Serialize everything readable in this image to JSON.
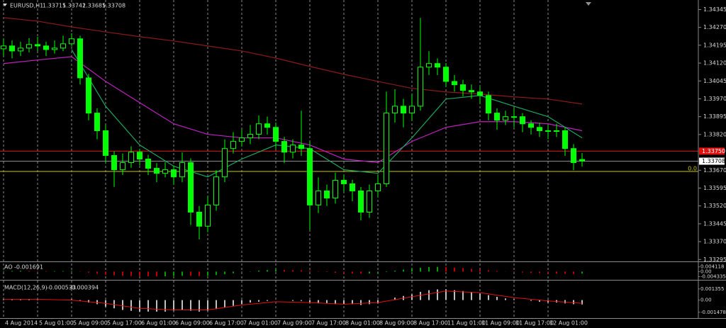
{
  "chart_data": {
    "type": "candlestick",
    "symbol": "EURUSD,H1",
    "ylim": [
      1.3329,
      1.34385
    ],
    "yticks": [
      1.34345,
      {
        "value": 1.3427,
        "label": "1.34270"
      },
      1.34195,
      {
        "value": 1.3412,
        "label": "1.34120"
      },
      1.34045,
      {
        "value": 1.3397,
        "label": "1.33970"
      },
      1.33895,
      {
        "value": 1.3382,
        "label": "1.33820"
      },
      {
        "value": 1.3367,
        "label": "1.33670"
      },
      1.33595,
      {
        "value": 1.3352,
        "label": "1.33520"
      },
      1.33445,
      {
        "value": 1.3337,
        "label": "1.33370"
      },
      1.33295
    ],
    "xticks": [
      {
        "value": 0,
        "label": "4 Aug 2014"
      },
      {
        "value": 4,
        "label": "5 Aug 01:00"
      },
      {
        "value": 8,
        "label": "5 Aug 09:00"
      },
      {
        "value": 12,
        "label": "5 Aug 17:00"
      },
      {
        "value": 16,
        "label": "6 Aug 01:00"
      },
      {
        "value": 20,
        "label": "6 Aug 09:00"
      },
      {
        "value": 24,
        "label": "6 Aug 17:00"
      },
      {
        "value": 28,
        "label": "7 Aug 01:00"
      },
      {
        "value": 32,
        "label": "7 Aug 09:00"
      },
      {
        "value": 36,
        "label": "7 Aug 17:00"
      },
      {
        "value": 40,
        "label": "8 Aug 01:00"
      },
      {
        "value": 44,
        "label": "8 Aug 09:00"
      },
      {
        "value": 48,
        "label": "8 Aug 17:00"
      },
      {
        "value": 52,
        "label": "11 Aug 01:00"
      },
      {
        "value": 56,
        "label": "11 Aug 09:00"
      },
      {
        "value": 60,
        "label": "11 Aug 17:00"
      },
      {
        "value": 64,
        "label": "12 Aug 01:00"
      }
    ],
    "bull_color": "#00ff00",
    "bear_color": "#00ff00",
    "ohlc": [
      [
        1.3418,
        1.34222,
        1.3415,
        1.34192
      ],
      [
        1.34192,
        1.34215,
        1.3414,
        1.34171
      ],
      [
        1.34171,
        1.3421,
        1.3415,
        1.34183
      ],
      [
        1.34183,
        1.34225,
        1.34165,
        1.34198
      ],
      [
        1.34198,
        1.3423,
        1.3417,
        1.34192
      ],
      [
        1.34192,
        1.3421,
        1.3415,
        1.34177
      ],
      [
        1.34177,
        1.34215,
        1.3416,
        1.34183
      ],
      [
        1.34183,
        1.34235,
        1.3417,
        1.34201
      ],
      [
        1.34201,
        1.34245,
        1.3419,
        1.34222
      ],
      [
        1.34222,
        1.34235,
        1.3403,
        1.34058
      ],
      [
        1.34058,
        1.34075,
        1.3388,
        1.3391
      ],
      [
        1.3391,
        1.3393,
        1.338,
        1.33836
      ],
      [
        1.33836,
        1.3386,
        1.337,
        1.33732
      ],
      [
        1.33732,
        1.3375,
        1.336,
        1.33672
      ],
      [
        1.33672,
        1.3374,
        1.3365,
        1.33702
      ],
      [
        1.33702,
        1.3377,
        1.3368,
        1.33746
      ],
      [
        1.33746,
        1.3376,
        1.3369,
        1.33717
      ],
      [
        1.33717,
        1.33735,
        1.3365,
        1.33678
      ],
      [
        1.33678,
        1.337,
        1.3362,
        1.33657
      ],
      [
        1.33657,
        1.33705,
        1.3364,
        1.33672
      ],
      [
        1.33672,
        1.3369,
        1.3361,
        1.33642
      ],
      [
        1.33642,
        1.33745,
        1.3362,
        1.33702
      ],
      [
        1.33702,
        1.3372,
        1.3344,
        1.33494
      ],
      [
        1.33494,
        1.3352,
        1.3338,
        1.33435
      ],
      [
        1.33435,
        1.3356,
        1.3341,
        1.33524
      ],
      [
        1.33524,
        1.3367,
        1.335,
        1.33642
      ],
      [
        1.33642,
        1.338,
        1.3362,
        1.33761
      ],
      [
        1.33761,
        1.3383,
        1.3374,
        1.33791
      ],
      [
        1.33791,
        1.3384,
        1.3377,
        1.33806
      ],
      [
        1.33806,
        1.3386,
        1.3378,
        1.33821
      ],
      [
        1.33821,
        1.339,
        1.338,
        1.33865
      ],
      [
        1.33865,
        1.33895,
        1.3382,
        1.3385
      ],
      [
        1.3385,
        1.3387,
        1.3376,
        1.33791
      ],
      [
        1.33791,
        1.3381,
        1.337,
        1.33746
      ],
      [
        1.33746,
        1.338,
        1.3372,
        1.33776
      ],
      [
        1.33776,
        1.3392,
        1.3373,
        1.33761
      ],
      [
        1.33761,
        1.3379,
        1.3342,
        1.33524
      ],
      [
        1.33524,
        1.3364,
        1.3349,
        1.33583
      ],
      [
        1.33583,
        1.3361,
        1.3352,
        1.33553
      ],
      [
        1.33553,
        1.3366,
        1.3353,
        1.33628
      ],
      [
        1.33628,
        1.3365,
        1.3358,
        1.33613
      ],
      [
        1.33613,
        1.3363,
        1.3354,
        1.33583
      ],
      [
        1.33583,
        1.336,
        1.3346,
        1.33494
      ],
      [
        1.33494,
        1.3361,
        1.3347,
        1.33583
      ],
      [
        1.33583,
        1.3365,
        1.3356,
        1.33613
      ],
      [
        1.33613,
        1.34,
        1.336,
        1.3391
      ],
      [
        1.3391,
        1.3401,
        1.3387,
        1.33939
      ],
      [
        1.33939,
        1.3397,
        1.3385,
        1.3391
      ],
      [
        1.3391,
        1.3399,
        1.3388,
        1.33939
      ],
      [
        1.33939,
        1.3431,
        1.3392,
        1.34103
      ],
      [
        1.34103,
        1.3417,
        1.3407,
        1.34118
      ],
      [
        1.34118,
        1.3414,
        1.3407,
        1.34103
      ],
      [
        1.34103,
        1.3412,
        1.3402,
        1.34043
      ],
      [
        1.34043,
        1.3407,
        1.34,
        1.34029
      ],
      [
        1.34029,
        1.3405,
        1.3398,
        1.34005
      ],
      [
        1.34005,
        1.3403,
        1.3397,
        1.33999
      ],
      [
        1.33999,
        1.3402,
        1.3395,
        1.33984
      ],
      [
        1.33984,
        1.34,
        1.3388,
        1.3391
      ],
      [
        1.3391,
        1.3393,
        1.3384,
        1.3388
      ],
      [
        1.3388,
        1.3392,
        1.3386,
        1.33895
      ],
      [
        1.33895,
        1.3393,
        1.3385,
        1.33895
      ],
      [
        1.33895,
        1.3391,
        1.3383,
        1.33865
      ],
      [
        1.33865,
        1.3388,
        1.3382,
        1.3385
      ],
      [
        1.3385,
        1.3387,
        1.3381,
        1.33836
      ],
      [
        1.33836,
        1.3386,
        1.338,
        1.33836
      ],
      [
        1.33836,
        1.33865,
        1.3381,
        1.33836
      ],
      [
        1.33836,
        1.3385,
        1.3373,
        1.33761
      ],
      [
        1.33761,
        1.3378,
        1.3367,
        1.33702
      ],
      [
        1.33715,
        1.33742,
        1.33685,
        1.33708
      ]
    ],
    "ma": [
      {
        "color": "#8b1a1a",
        "x": [
          0,
          4,
          8,
          12,
          16,
          20,
          24,
          28,
          32,
          36,
          40,
          44,
          48,
          52,
          56,
          60,
          64,
          68
        ],
        "values": [
          1.34311,
          1.34296,
          1.34272,
          1.34251,
          1.34231,
          1.34213,
          1.34192,
          1.34171,
          1.34141,
          1.34106,
          1.34073,
          1.34043,
          1.34014,
          1.33999,
          1.3399,
          1.33978,
          1.33969,
          1.33948
        ]
      },
      {
        "color": "#c020c0",
        "x": [
          0,
          4,
          8,
          12,
          16,
          20,
          24,
          28,
          32,
          36,
          40,
          44,
          48,
          52,
          56,
          60,
          64,
          68
        ],
        "values": [
          1.34118,
          1.34133,
          1.34147,
          1.34043,
          1.33954,
          1.33865,
          1.33821,
          1.33806,
          1.33806,
          1.33776,
          1.33717,
          1.33702,
          1.33791,
          1.3385,
          1.33874,
          1.33874,
          1.33865,
          1.33836
        ]
      },
      {
        "color": "#1aa860",
        "x": [
          8,
          12,
          16,
          20,
          24,
          28,
          32,
          36,
          40,
          44,
          48,
          52,
          56,
          60,
          64,
          68
        ],
        "values": [
          1.34177,
          1.33939,
          1.33776,
          1.33687,
          1.33642,
          1.33717,
          1.33776,
          1.33761,
          1.33672,
          1.33657,
          1.33806,
          1.33969,
          1.33984,
          1.33939,
          1.33895,
          1.33806
        ]
      }
    ],
    "levels": [
      {
        "value": 1.3375,
        "label": "1.33750",
        "color": "#e01010"
      },
      {
        "value": 1.33665,
        "label": "0.0",
        "color": "#c8c800"
      }
    ],
    "ao": {
      "title": "AO",
      "ylim": [
        -0.0065,
        0.007
      ],
      "yticks": [
        0.004118,
        {
          "value": 0,
          "label": "0.00"
        },
        -0.004335
      ],
      "up_color": "#00a000",
      "down_color": "#c00000",
      "values": [
        0.0005,
        0.0006,
        0.0007,
        0.0006,
        0.0005,
        0.0004,
        0.0004,
        0.0005,
        0.0006,
        0.0002,
        -0.0008,
        -0.0018,
        -0.0026,
        -0.0032,
        -0.0036,
        -0.0038,
        -0.0039,
        -0.004,
        -0.0041,
        -0.004,
        -0.0038,
        -0.0036,
        -0.0037,
        -0.0039,
        -0.0036,
        -0.003,
        -0.0022,
        -0.0014,
        -0.0006,
        0.0002,
        0.0009,
        0.0014,
        0.0016,
        0.0015,
        0.0013,
        0.0012,
        0.0008,
        0.0002,
        -0.0004,
        -0.001,
        -0.0014,
        -0.0016,
        -0.0018,
        -0.0016,
        -0.0012,
        -0.0004,
        0.0008,
        0.0018,
        0.0026,
        0.0034,
        0.004,
        0.0041,
        0.0039,
        0.0035,
        0.003,
        0.0024,
        0.0018,
        0.0012,
        0.0006,
        0.0001,
        -0.0004,
        -0.0008,
        -0.0011,
        -0.0013,
        -0.0015,
        -0.0017,
        -0.0019,
        -0.002,
        -0.001691
      ]
    },
    "macd": {
      "title": "MACD(12,26,9)",
      "ylim": [
        -0.0021,
        0.0022
      ],
      "yticks": [
        0.001355,
        {
          "value": 0,
          "label": "0.00"
        },
        -0.001478
      ],
      "color": "#c0c0c0",
      "signal_color": "#e01010",
      "values": [
        0.0001,
        0.0001,
        0.0001,
        0.0001,
        0.0001,
        0,
        0,
        0,
        0.0001,
        -0.0001,
        -0.0003,
        -0.0005,
        -0.0008,
        -0.001,
        -0.0012,
        -0.0013,
        -0.0014,
        -0.0014,
        -0.0014,
        -0.0014,
        -0.0013,
        -0.0012,
        -0.0013,
        -0.0014,
        -0.0013,
        -0.0011,
        -0.0009,
        -0.0007,
        -0.0005,
        -0.0003,
        -0.0002,
        -0.0001,
        0,
        0,
        -0.0001,
        -0.0001,
        -0.0003,
        -0.0004,
        -0.0004,
        -0.0005,
        -0.0005,
        -0.0005,
        -0.0006,
        -0.0005,
        -0.0004,
        0,
        0.0003,
        0.0005,
        0.0007,
        0.001,
        0.0012,
        0.0013,
        0.0013,
        0.0012,
        0.0011,
        0.001,
        0.0008,
        0.0006,
        0.0004,
        0.0002,
        0.0001,
        0,
        -0.0001,
        -0.0002,
        -0.0003,
        -0.0003,
        -0.0004,
        -0.0005,
        -0.000533
      ],
      "signal_x": [
        0,
        4,
        8,
        12,
        16,
        20,
        24,
        28,
        32,
        36,
        40,
        44,
        48,
        52,
        56,
        60,
        64,
        68
      ],
      "signal": [
        0.0001,
        0.0001,
        0,
        -0.0004,
        -0.001,
        -0.0012,
        -0.0012,
        -0.0006,
        -0.0002,
        -0.0003,
        -0.0005,
        -0.0003,
        0.0004,
        0.0011,
        0.0009,
        0.0003,
        -0.0001,
        -0.000394
      ]
    }
  }
}
